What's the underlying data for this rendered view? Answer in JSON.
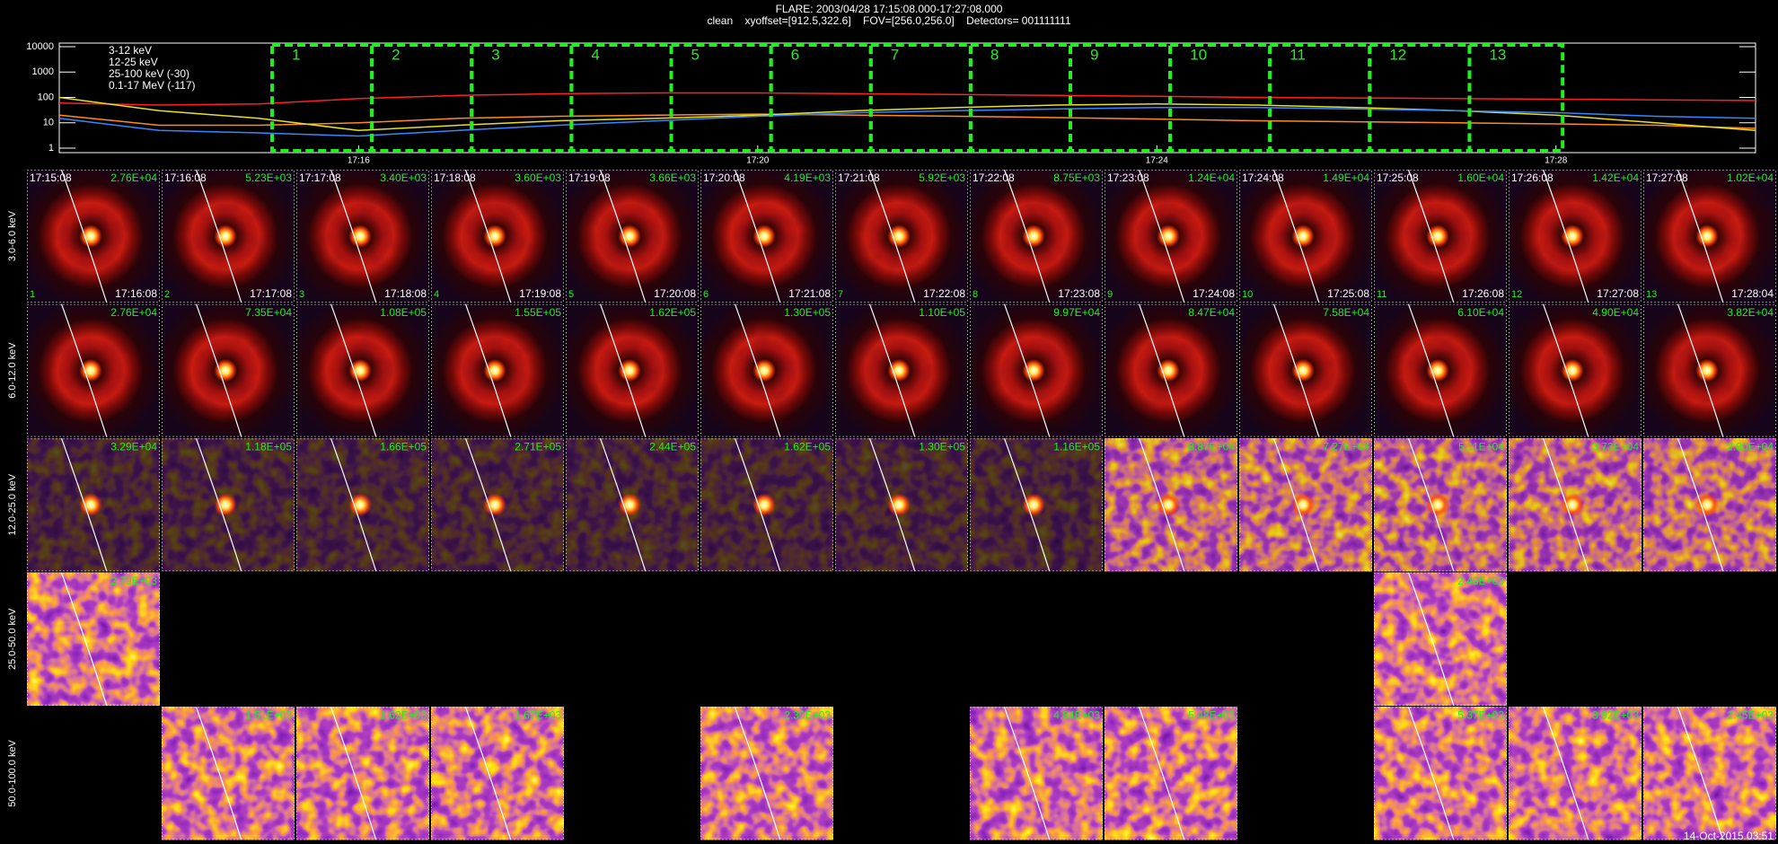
{
  "header": {
    "title": "FLARE: 2003/04/28 17:15:08.000-17:27:08.000",
    "subtitle": "clean    xyoffset=[912.5,322.6]    FOV=[256.0,256.0]    Detectors= 001111111"
  },
  "chart_data": {
    "type": "line",
    "x": [
      "17:13",
      "17:14",
      "17:15",
      "17:16",
      "17:17",
      "17:18",
      "17:19",
      "17:20",
      "17:21",
      "17:22",
      "17:23",
      "17:24",
      "17:25",
      "17:26",
      "17:27",
      "17:28",
      "17:29",
      "17:30"
    ],
    "series": [
      {
        "name": "3-12 keV",
        "color": "#ff2020",
        "values": [
          60,
          50,
          55,
          90,
          120,
          140,
          150,
          150,
          140,
          130,
          120,
          110,
          100,
          95,
          90,
          85,
          80,
          75
        ]
      },
      {
        "name": "12-25 keV",
        "color": "#ff8c1a",
        "values": [
          20,
          8,
          8,
          10,
          15,
          18,
          20,
          22,
          20,
          18,
          16,
          14,
          12,
          11,
          10,
          9,
          8,
          6
        ]
      },
      {
        "name": "25-100 keV (-30)",
        "color": "#e8e020",
        "values": [
          100,
          30,
          15,
          5,
          8,
          12,
          15,
          20,
          30,
          40,
          50,
          55,
          50,
          40,
          30,
          20,
          10,
          5
        ]
      },
      {
        "name": "0.1-17 MeV (-117)",
        "color": "#3388ff",
        "values": [
          15,
          5,
          4,
          3,
          5,
          8,
          12,
          18,
          25,
          30,
          35,
          40,
          40,
          35,
          30,
          25,
          18,
          15
        ]
      }
    ],
    "xlim": [
      "17:13",
      "17:30"
    ],
    "xticks": [
      "17:16",
      "17:20",
      "17:24",
      "17:28"
    ],
    "ylim": [
      1,
      10000
    ],
    "yticks": [
      1,
      10,
      100,
      1000,
      10000
    ],
    "log_y": true
  },
  "panels": {
    "times": [
      {
        "index": "1",
        "start": "17:15:08",
        "end": "17:16:08"
      },
      {
        "index": "2",
        "start": "17:16:08",
        "end": "17:17:08"
      },
      {
        "index": "3",
        "start": "17:17:08",
        "end": "17:18:08"
      },
      {
        "index": "4",
        "start": "17:18:08",
        "end": "17:19:08"
      },
      {
        "index": "5",
        "start": "17:19:08",
        "end": "17:20:08"
      },
      {
        "index": "6",
        "start": "17:20:08",
        "end": "17:21:08"
      },
      {
        "index": "7",
        "start": "17:21:08",
        "end": "17:22:08"
      },
      {
        "index": "8",
        "start": "17:22:08",
        "end": "17:23:08"
      },
      {
        "index": "9",
        "start": "17:23:08",
        "end": "17:24:08"
      },
      {
        "index": "10",
        "start": "17:24:08",
        "end": "17:25:08"
      },
      {
        "index": "11",
        "start": "17:25:08",
        "end": "17:26:08"
      },
      {
        "index": "12",
        "start": "17:26:08",
        "end": "17:27:08"
      },
      {
        "index": "13",
        "start": "17:27:08",
        "end": "17:28:04"
      }
    ],
    "rows": [
      {
        "label": "3.0-6.0 keV",
        "peaks": [
          "2.76E+04",
          "5.23E+03",
          "3.40E+03",
          "3.60E+03",
          "3.66E+03",
          "4.19E+03",
          "5.92E+03",
          "8.75E+03",
          "1.24E+04",
          "1.49E+04",
          "1.60E+04",
          "1.42E+04",
          "1.02E+04"
        ]
      },
      {
        "label": "6.0-12.0 keV",
        "peaks": [
          "2.76E+04",
          "7.35E+04",
          "1.08E+05",
          "1.55E+05",
          "1.62E+05",
          "1.30E+05",
          "1.10E+05",
          "9.97E+04",
          "8.47E+04",
          "7.58E+04",
          "6.10E+04",
          "4.90E+04",
          "3.82E+04"
        ]
      },
      {
        "label": "12.0-25.0 keV",
        "peaks": [
          "3.29E+04",
          "1.18E+05",
          "1.66E+05",
          "2.71E+05",
          "2.44E+05",
          "1.62E+05",
          "1.30E+05",
          "1.16E+05",
          "8.87E+04",
          "7.27E+04",
          "5.11E+04",
          "3.73E+04",
          "2.80E+04"
        ]
      },
      {
        "label": "25.0-50.0 keV",
        "peaks": [
          "2.79E+03",
          null,
          null,
          null,
          null,
          null,
          null,
          null,
          null,
          null,
          "2.48E+03",
          null,
          null
        ]
      },
      {
        "label": "50.0-100.0 keV",
        "peaks": [
          null,
          "1.51E+03",
          "1.62E+03",
          "1.67E+03",
          null,
          "2.30E+03",
          null,
          "4.84E+03",
          "5.48E+03",
          null,
          "5.37E+03",
          "3.92E+03",
          "2.45E+03"
        ]
      }
    ]
  },
  "footer": "14-Oct-2015 03:51"
}
